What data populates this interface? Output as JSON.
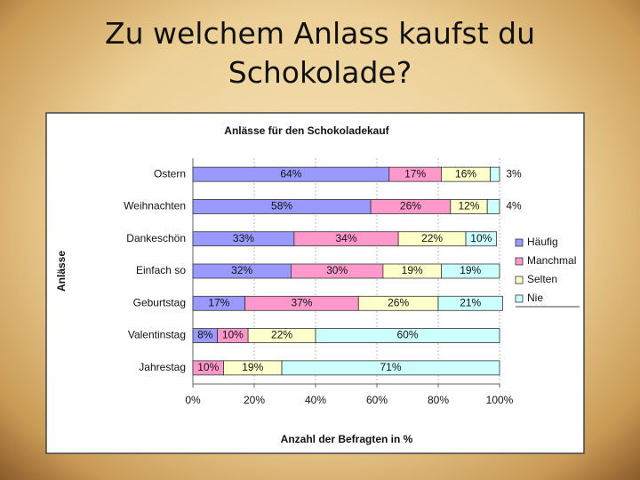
{
  "slide_title": "Zu welchem Anlass kaufst du Schokolade?",
  "chart_data": {
    "type": "stacked-bar-horizontal",
    "title": "Anlässe für den Schokoladekauf",
    "x_label": "Anzahl der Befragten in %",
    "y_label": "Anlässe",
    "categories": [
      "Ostern",
      "Weihnachten",
      "Dankeschön",
      "Einfach so",
      "Geburtstag",
      "Valentinstag",
      "Jahrestag"
    ],
    "series": [
      {
        "name": "Häufig",
        "color": "#9999ff",
        "values": [
          64,
          58,
          33,
          32,
          17,
          8,
          null
        ],
        "value_labels": [
          "64%",
          "58%",
          "33%",
          "32%",
          "17%",
          "8%",
          null
        ]
      },
      {
        "name": "Manchmal",
        "color": "#ff99cc",
        "values": [
          17,
          26,
          34,
          30,
          37,
          10,
          10
        ],
        "value_labels": [
          "17%",
          "26%",
          "34%",
          "30%",
          "37%",
          "10%",
          "10%"
        ]
      },
      {
        "name": "Selten",
        "color": "#ffffcc",
        "values": [
          16,
          12,
          22,
          19,
          26,
          22,
          19
        ],
        "value_labels": [
          "16%",
          "12%",
          "22%",
          "19%",
          "26%",
          "22%",
          "19%"
        ]
      },
      {
        "name": "Nie",
        "color": "#ccffff",
        "values": [
          3,
          4,
          10,
          19,
          21,
          60,
          71
        ],
        "value_labels": [
          "3%",
          "4%",
          "10%",
          "19%",
          "21%",
          "60%",
          "71%"
        ]
      }
    ],
    "xlim": [
      0,
      100
    ],
    "xticks": [
      {
        "value": 0,
        "label": "0%"
      },
      {
        "value": 20,
        "label": "20%"
      },
      {
        "value": 40,
        "label": "40%"
      },
      {
        "value": 60,
        "label": "60%"
      },
      {
        "value": 80,
        "label": "80%"
      },
      {
        "value": 100,
        "label": "100%"
      }
    ],
    "grid": true,
    "legend": "right"
  }
}
